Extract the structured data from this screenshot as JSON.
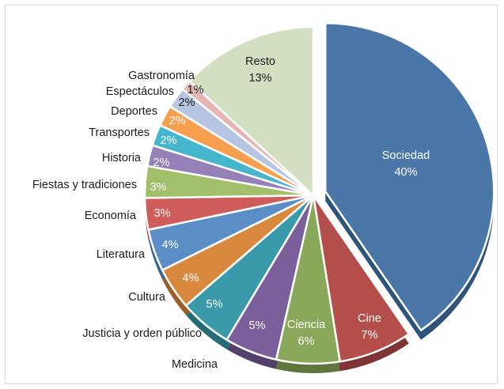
{
  "chart_data": {
    "type": "pie",
    "title": "",
    "slices": [
      {
        "label": "Sociedad",
        "value": 40,
        "pct": "40%",
        "color": "#4a77a8",
        "side": "#2f5479"
      },
      {
        "label": "Cine",
        "value": 7,
        "pct": "7%",
        "color": "#b44f4c",
        "side": "#7e3533"
      },
      {
        "label": "Ciencia",
        "value": 6,
        "pct": "6%",
        "color": "#8aa85a",
        "side": "#5f773d"
      },
      {
        "label": "Medicina",
        "value": 5,
        "pct": "5%",
        "color": "#7a5f9b",
        "side": "#53406c"
      },
      {
        "label": "Justicia y orden público",
        "value": 5,
        "pct": "5%",
        "color": "#3a9aaa",
        "side": "#266c78"
      },
      {
        "label": "Cultura",
        "value": 4,
        "pct": "4%",
        "color": "#d9893e",
        "side": "#9a5e28"
      },
      {
        "label": "Literatura",
        "value": 4,
        "pct": "4%",
        "color": "#5b8ec6",
        "side": "#3e6591"
      },
      {
        "label": "Economía",
        "value": 3,
        "pct": "3%",
        "color": "#cd5c5a",
        "side": "#94403e"
      },
      {
        "label": "Fiestas y tradiciones",
        "value": 3,
        "pct": "3%",
        "color": "#a2c06c",
        "side": "#72894b"
      },
      {
        "label": "Historia",
        "value": 2,
        "pct": "2%",
        "color": "#9581b8",
        "side": "#695a85"
      },
      {
        "label": "Transportes",
        "value": 2,
        "pct": "2%",
        "color": "#45b6cc",
        "side": "#2f8293"
      },
      {
        "label": "Deportes",
        "value": 2,
        "pct": "2%",
        "color": "#f6a04f",
        "side": "#b07236"
      },
      {
        "label": "Espectáculos",
        "value": 2,
        "pct": "2%",
        "color": "#b7c6e0",
        "side": "#8192ad"
      },
      {
        "label": "Gastronomía",
        "value": 1,
        "pct": "1%",
        "color": "#e4b5b3",
        "side": "#a98483"
      },
      {
        "label": "Resto",
        "value": 13,
        "pct": "13%",
        "color": "#d3dfc1",
        "side": "#9eaa8c"
      }
    ]
  }
}
